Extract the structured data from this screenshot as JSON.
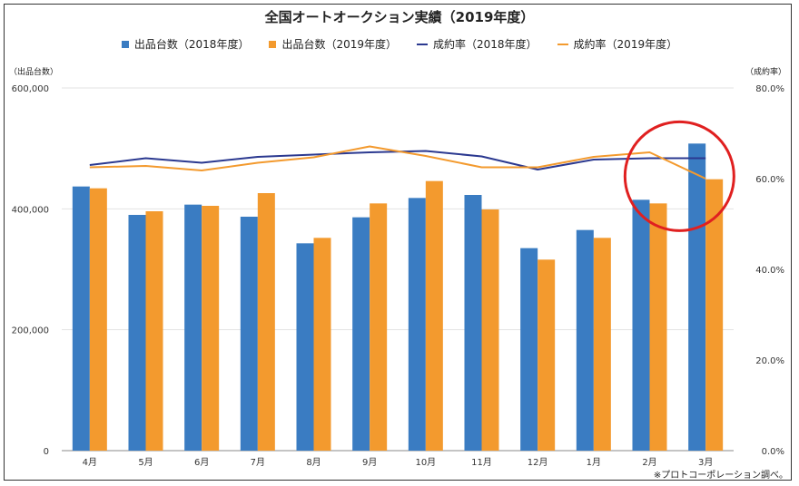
{
  "chart_data": {
    "type": "bar",
    "title": "全国オートオークション実績（2019年度）",
    "categories": [
      "4月",
      "5月",
      "6月",
      "7月",
      "8月",
      "9月",
      "10月",
      "11月",
      "12月",
      "1月",
      "2月",
      "3月"
    ],
    "series": [
      {
        "name": "出品台数（2018年度）",
        "type": "bar",
        "axis": "left",
        "color": "#3a7cc2",
        "values": [
          437000,
          390000,
          407000,
          387000,
          343000,
          386000,
          418000,
          423000,
          335000,
          365000,
          415000,
          508000
        ]
      },
      {
        "name": "出品台数（2019年度）",
        "type": "bar",
        "axis": "left",
        "color": "#f39a2e",
        "values": [
          434000,
          396000,
          405000,
          426000,
          352000,
          409000,
          446000,
          399000,
          316000,
          352000,
          409000,
          449000
        ]
      },
      {
        "name": "成約率（2018年度）",
        "type": "line",
        "axis": "right",
        "color": "#2b3990",
        "values": [
          63.0,
          64.5,
          63.5,
          64.8,
          65.3,
          65.8,
          66.1,
          64.9,
          62.0,
          64.2,
          64.5,
          64.5
        ]
      },
      {
        "name": "成約率（2019年度）",
        "type": "line",
        "axis": "right",
        "color": "#f39a2e",
        "values": [
          62.5,
          62.8,
          61.8,
          63.5,
          64.7,
          67.1,
          65.0,
          62.5,
          62.5,
          64.8,
          65.8,
          60.0
        ]
      }
    ],
    "y_left": {
      "label": "（出品台数）",
      "ylim": [
        0,
        600000
      ],
      "ticks": [
        "0",
        "200,000",
        "400,000",
        "600,000"
      ]
    },
    "y_right": {
      "label": "（成約率）",
      "ylim": [
        0,
        80
      ],
      "ticks": [
        "0.0%",
        "20.0%",
        "40.0%",
        "60.0%",
        "80.0%"
      ]
    },
    "grid": true,
    "legend_position": "top",
    "annotation": {
      "type": "red-circle",
      "around": [
        "2月",
        "3月"
      ],
      "color": "#e02020"
    },
    "note": "※プロトコーポレーション調べ。"
  }
}
